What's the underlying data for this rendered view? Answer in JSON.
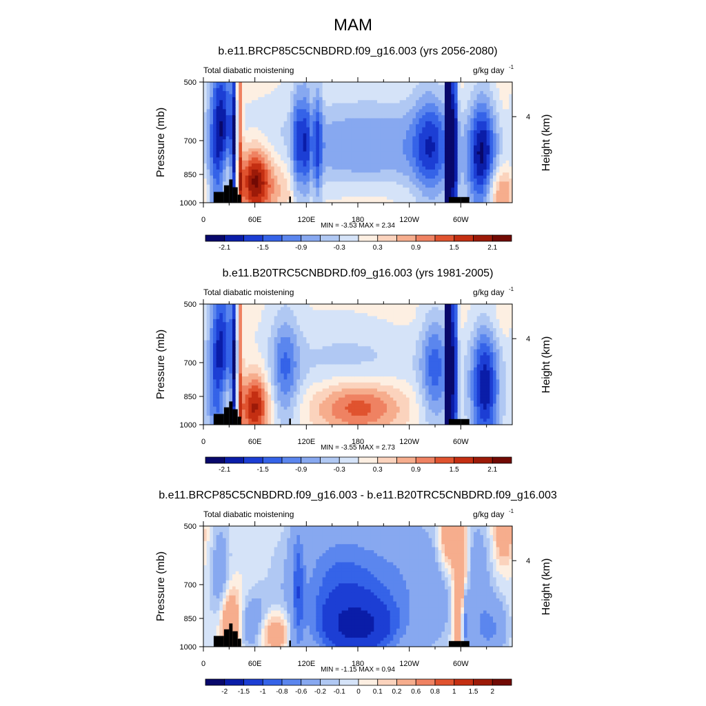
{
  "figure": {
    "title": "MAM"
  },
  "scale_first": {
    "colors": [
      "#08086b",
      "#0a1da8",
      "#1c3ed4",
      "#3563e8",
      "#5b86ee",
      "#87a8f0",
      "#b0c8f3",
      "#d5e3f8",
      "#fdefe2",
      "#fbd3bd",
      "#f6ad8d",
      "#ef8262",
      "#e0532f",
      "#c42f12",
      "#9c1a08",
      "#720a04"
    ],
    "labels": [
      "-2.1",
      "-1.5",
      "-0.9",
      "-0.3",
      "0.3",
      "0.9",
      "1.5",
      "2.1"
    ],
    "label_positions": [
      1,
      3,
      5,
      7,
      9,
      11,
      13,
      15
    ]
  },
  "scale_diff": {
    "colors": [
      "#08086b",
      "#0a1da8",
      "#1c3ed4",
      "#3563e8",
      "#5b86ee",
      "#87a8f0",
      "#b0c8f3",
      "#d5e3f8",
      "#fdefe2",
      "#fbd3bd",
      "#f6ad8d",
      "#ef8262",
      "#e0532f",
      "#c42f12",
      "#9c1a08",
      "#720a04"
    ],
    "labels": [
      "-2",
      "-1.5",
      "-1",
      "-0.8",
      "-0.6",
      "-0.2",
      "-0.1",
      "0",
      "0.1",
      "0.2",
      "0.6",
      "0.8",
      "1",
      "1.5",
      "2"
    ],
    "label_positions": [
      1,
      2,
      3,
      4,
      5,
      6,
      7,
      8,
      9,
      10,
      11,
      12,
      13,
      14,
      15
    ]
  },
  "axes": {
    "y_ticks": [
      "500",
      "700",
      "850",
      "1000"
    ],
    "y_label": "Pressure (mb)",
    "x_ticks": [
      "0",
      "60E",
      "120E",
      "180",
      "120W",
      "60W"
    ],
    "right_label": "Height (km)",
    "right_tick": "4",
    "left_string": "Total diabatic moistening",
    "units_base": "g/kg day",
    "units_sup": "-1"
  },
  "chart_data": [
    {
      "type": "heatmap",
      "panel_title": "b.e11.BRCP85C5CNBDRD.f09_g16.003 (yrs 2056-2080)",
      "xlabel": "",
      "ylabel": "Pressure (mb)",
      "y_scale": "log",
      "xlim": [
        0,
        360
      ],
      "ylim": [
        1000,
        500
      ],
      "stats": "MIN =  -3.53  MAX =   2.34",
      "min": -3.53,
      "max": 2.34,
      "colorbar_levels": [
        -2.1,
        -1.8,
        -1.5,
        -1.2,
        -0.9,
        -0.6,
        -0.3,
        0,
        0.3,
        0.6,
        0.9,
        1.2,
        1.5,
        1.8,
        2.1
      ],
      "features": [
        {
          "lon": 20,
          "p": 720,
          "dlon": 10,
          "dlogp": 0.18,
          "v": -2.3
        },
        {
          "lon": 37,
          "p": 820,
          "dlon": 3,
          "dlogp": 0.25,
          "v": -2.4
        },
        {
          "lon": 41,
          "p": 700,
          "dlon": 3,
          "dlogp": 0.3,
          "v": 2.0
        },
        {
          "lon": 60,
          "p": 880,
          "dlon": 12,
          "dlogp": 0.06,
          "v": 1.8
        },
        {
          "lon": 25,
          "p": 870,
          "dlon": 7,
          "dlogp": 0.06,
          "v": 1.2
        },
        {
          "lon": 80,
          "p": 900,
          "dlon": 25,
          "dlogp": 0.06,
          "v": 0.7
        },
        {
          "lon": 110,
          "p": 720,
          "dlon": 5,
          "dlogp": 0.12,
          "v": -1.2
        },
        {
          "lon": 120,
          "p": 720,
          "dlon": 4,
          "dlogp": 0.12,
          "v": -1.1
        },
        {
          "lon": 133,
          "p": 720,
          "dlon": 4,
          "dlogp": 0.12,
          "v": -1.1
        },
        {
          "lon": 190,
          "p": 720,
          "dlon": 80,
          "dlogp": 0.1,
          "v": -0.9
        },
        {
          "lon": 265,
          "p": 720,
          "dlon": 15,
          "dlogp": 0.1,
          "v": -1.3
        },
        {
          "lon": 285,
          "p": 720,
          "dlon": 2,
          "dlogp": 0.4,
          "v": -3.4
        },
        {
          "lon": 292,
          "p": 720,
          "dlon": 3,
          "dlogp": 0.3,
          "v": -2.0
        },
        {
          "lon": 325,
          "p": 770,
          "dlon": 12,
          "dlogp": 0.12,
          "v": -2.1
        },
        {
          "lon": 345,
          "p": 950,
          "dlon": 15,
          "dlogp": 0.05,
          "v": 1.2
        },
        {
          "lon": 330,
          "p": 540,
          "dlon": 30,
          "dlogp": 0.08,
          "v": 0.25
        },
        {
          "lon": 180,
          "p": 540,
          "dlon": 120,
          "dlogp": 0.05,
          "v": 0.2
        },
        {
          "lon": 190,
          "p": 960,
          "dlon": 60,
          "dlogp": 0.04,
          "v": 0.4
        }
      ]
    },
    {
      "type": "heatmap",
      "panel_title": "b.e11.B20TRC5CNBDRD.f09_g16.003 (yrs 1981-2005)",
      "xlabel": "",
      "ylabel": "Pressure (mb)",
      "y_scale": "log",
      "xlim": [
        0,
        360
      ],
      "ylim": [
        1000,
        500
      ],
      "stats": "MIN =  -3.55  MAX =   2.73",
      "min": -3.55,
      "max": 2.73,
      "colorbar_levels": [
        -2.1,
        -1.8,
        -1.5,
        -1.2,
        -0.9,
        -0.6,
        -0.3,
        0,
        0.3,
        0.6,
        0.9,
        1.2,
        1.5,
        1.8,
        2.1
      ],
      "features": [
        {
          "lon": 20,
          "p": 720,
          "dlon": 10,
          "dlogp": 0.18,
          "v": -2.1
        },
        {
          "lon": 37,
          "p": 820,
          "dlon": 3,
          "dlogp": 0.25,
          "v": -2.4
        },
        {
          "lon": 41,
          "p": 700,
          "dlon": 3,
          "dlogp": 0.3,
          "v": 1.8
        },
        {
          "lon": 60,
          "p": 900,
          "dlon": 12,
          "dlogp": 0.06,
          "v": 1.9
        },
        {
          "lon": 25,
          "p": 870,
          "dlon": 7,
          "dlogp": 0.06,
          "v": 1.0
        },
        {
          "lon": 95,
          "p": 720,
          "dlon": 12,
          "dlogp": 0.1,
          "v": -1.1
        },
        {
          "lon": 180,
          "p": 900,
          "dlon": 40,
          "dlogp": 0.05,
          "v": 1.6
        },
        {
          "lon": 170,
          "p": 720,
          "dlon": 60,
          "dlogp": 0.1,
          "v": -0.5
        },
        {
          "lon": 270,
          "p": 720,
          "dlon": 12,
          "dlogp": 0.1,
          "v": -1.3
        },
        {
          "lon": 285,
          "p": 720,
          "dlon": 2,
          "dlogp": 0.4,
          "v": -3.4
        },
        {
          "lon": 292,
          "p": 720,
          "dlon": 3,
          "dlogp": 0.3,
          "v": -2.0
        },
        {
          "lon": 328,
          "p": 800,
          "dlon": 12,
          "dlogp": 0.12,
          "v": -2.0
        },
        {
          "lon": 200,
          "p": 540,
          "dlon": 100,
          "dlogp": 0.06,
          "v": 0.2
        },
        {
          "lon": 340,
          "p": 540,
          "dlon": 20,
          "dlogp": 0.05,
          "v": 0.3
        }
      ]
    },
    {
      "type": "heatmap",
      "panel_title": "b.e11.BRCP85C5CNBDRD.f09_g16.003 - b.e11.B20TRC5CNBDRD.f09_g16.003",
      "xlabel": "",
      "ylabel": "Pressure (mb)",
      "y_scale": "log",
      "xlim": [
        0,
        360
      ],
      "ylim": [
        1000,
        500
      ],
      "stats": "MIN =  -1.15  MAX =   0.94",
      "min": -1.15,
      "max": 0.94,
      "colorbar_levels": [
        -2,
        -1.5,
        -1,
        -0.8,
        -0.6,
        -0.2,
        -0.1,
        0,
        0.1,
        0.2,
        0.6,
        0.8,
        1,
        1.5,
        2
      ],
      "features": [
        {
          "lon": 180,
          "p": 900,
          "dlon": 30,
          "dlogp": 0.05,
          "v": -1.1
        },
        {
          "lon": 200,
          "p": 720,
          "dlon": 60,
          "dlogp": 0.12,
          "v": -0.7
        },
        {
          "lon": 150,
          "p": 720,
          "dlon": 30,
          "dlogp": 0.12,
          "v": -0.4
        },
        {
          "lon": 30,
          "p": 870,
          "dlon": 10,
          "dlogp": 0.06,
          "v": 0.7
        },
        {
          "lon": 20,
          "p": 720,
          "dlon": 8,
          "dlogp": 0.12,
          "v": -0.4
        },
        {
          "lon": 60,
          "p": 890,
          "dlon": 15,
          "dlogp": 0.05,
          "v": -0.5
        },
        {
          "lon": 80,
          "p": 920,
          "dlon": 15,
          "dlogp": 0.04,
          "v": 0.6
        },
        {
          "lon": 300,
          "p": 760,
          "dlon": 6,
          "dlogp": 0.15,
          "v": 0.8
        },
        {
          "lon": 305,
          "p": 880,
          "dlon": 3,
          "dlogp": 0.06,
          "v": -1.0
        },
        {
          "lon": 320,
          "p": 700,
          "dlon": 10,
          "dlogp": 0.12,
          "v": -0.3
        },
        {
          "lon": 335,
          "p": 900,
          "dlon": 12,
          "dlogp": 0.05,
          "v": -0.6
        },
        {
          "lon": 110,
          "p": 720,
          "dlon": 5,
          "dlogp": 0.15,
          "v": -0.6
        },
        {
          "lon": 285,
          "p": 540,
          "dlon": 8,
          "dlogp": 0.06,
          "v": 0.5
        },
        {
          "lon": 350,
          "p": 530,
          "dlon": 8,
          "dlogp": 0.05,
          "v": 0.4
        }
      ]
    }
  ]
}
